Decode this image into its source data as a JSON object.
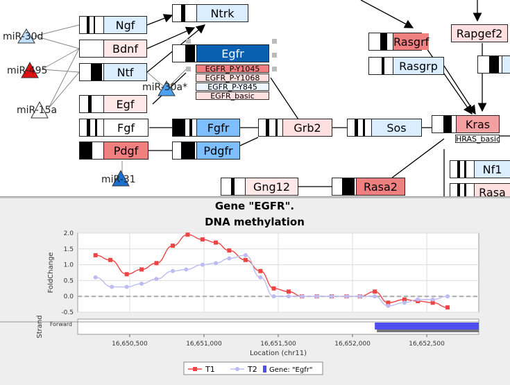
{
  "network": {
    "nodes": [
      {
        "id": "ngf",
        "label": "Ngf",
        "bg": "#dbeeff",
        "bars": "a"
      },
      {
        "id": "ntrk",
        "label": "Ntrk",
        "bg": "#dbeeff",
        "bars": "b"
      },
      {
        "id": "bdnf",
        "label": "Bdnf",
        "bg": "#ffe8e8",
        "bars": "none"
      },
      {
        "id": "egfr",
        "label": "Egfr",
        "bg": "#0a60b0",
        "bars": "c"
      },
      {
        "id": "ntf",
        "label": "Ntf",
        "bg": "#dbeeff",
        "bars": "d"
      },
      {
        "id": "egf",
        "label": "Egf",
        "bg": "#ffe8e8",
        "bars": "e"
      },
      {
        "id": "fgf",
        "label": "Fgf",
        "bg": "#ffffff",
        "bars": "f"
      },
      {
        "id": "fgfr",
        "label": "Fgfr",
        "bg": "#7fbfff",
        "bars": "g"
      },
      {
        "id": "grb2",
        "label": "Grb2",
        "bg": "#ffe0e0",
        "bars": "h"
      },
      {
        "id": "sos",
        "label": "Sos",
        "bg": "#dbeeff",
        "bars": "i"
      },
      {
        "id": "kras",
        "label": "Kras",
        "bg": "#f4a0a0",
        "bars": "j"
      },
      {
        "id": "pdgf",
        "label": "Pdgf",
        "bg": "#f08080",
        "bars": "k"
      },
      {
        "id": "pdgfr",
        "label": "Pdgfr",
        "bg": "#7fbfff",
        "bars": "g"
      },
      {
        "id": "rasgrf",
        "label": "Rasgrf",
        "bg": "#f08080",
        "bars": "l"
      },
      {
        "id": "rasgrp",
        "label": "Rasgrp",
        "bg": "#dbeeff",
        "bars": "m"
      },
      {
        "id": "rapgef2",
        "label": "Rapgef2",
        "bg": "#ffe0e0",
        "bars": "none"
      },
      {
        "id": "nf1",
        "label": "Nf1",
        "bg": "#dbeeff",
        "bars": "n"
      },
      {
        "id": "rasa",
        "label": "Rasa",
        "bg": "#ffe0e0",
        "bars": "n"
      },
      {
        "id": "gng12",
        "label": "Gng12",
        "bg": "#ffe8e8",
        "bars": "o"
      },
      {
        "id": "rasa2",
        "label": "Rasa2",
        "bg": "#f08080",
        "bars": "p"
      }
    ],
    "egfr_subs": [
      "EGFR_P-Y1045",
      "EGFR_P-Y1068",
      "EGFR_P-Y845",
      "EGFR_basic"
    ],
    "kras_sub": "HRAS_basic",
    "mirnas": [
      {
        "id": "mir30d",
        "label": "miR-30d",
        "color": "#bfe0ff"
      },
      {
        "id": "mir495",
        "label": "miR-495",
        "color": "#dd1111"
      },
      {
        "id": "mir30a",
        "label": "miR-30a*",
        "color": "#4a9fee"
      },
      {
        "id": "mir15a",
        "label": "miR-15a",
        "color": "#ffffff"
      },
      {
        "id": "mir31",
        "label": "miR-31",
        "color": "#1a70d0"
      }
    ]
  },
  "chart_data": {
    "type": "line",
    "title": "Gene \"EGFR\".",
    "subtitle": "DNA methylation",
    "ylabel": "FoldChange",
    "xlabel": "Location (chr11)",
    "strand_label": "Strand",
    "strand_value": "Forward",
    "ylim": [
      -0.5,
      2.0
    ],
    "xlim": [
      16650150,
      16652850
    ],
    "yticks": [
      "2.0",
      "1.5",
      "1.0",
      "0.5",
      "0.0",
      "-0.5"
    ],
    "ytick_values": [
      2.0,
      1.5,
      1.0,
      0.5,
      0.0,
      -0.5
    ],
    "xticks": [
      "16,650,500",
      "16,651,000",
      "16,651,500",
      "16,652,000",
      "16,652,500"
    ],
    "xtick_values": [
      16650500,
      16651000,
      16651500,
      16652000,
      16652500
    ],
    "series": [
      {
        "name": "T1",
        "color": "#ee4444",
        "x": [
          16650270,
          16650370,
          16650480,
          16650580,
          16650680,
          16650790,
          16650890,
          16650990,
          16651080,
          16651170,
          16651280,
          16651380,
          16651470,
          16651570,
          16651660,
          16651760,
          16651860,
          16651960,
          16652050,
          16652150,
          16652240,
          16652350,
          16652440,
          16652540,
          16652640
        ],
        "y": [
          1.3,
          1.15,
          0.7,
          0.85,
          1.05,
          1.6,
          1.95,
          1.8,
          1.7,
          1.45,
          1.15,
          0.8,
          0.25,
          0.15,
          0.0,
          0.0,
          0.0,
          0.0,
          0.0,
          0.15,
          -0.2,
          -0.1,
          -0.15,
          -0.2,
          -0.35
        ]
      },
      {
        "name": "T2",
        "color": "#bcbcf2",
        "x": [
          16650270,
          16650380,
          16650480,
          16650580,
          16650680,
          16650790,
          16650880,
          16650990,
          16651080,
          16651170,
          16651280,
          16651380,
          16651470,
          16651570,
          16651660,
          16651760,
          16651860,
          16651960,
          16652050,
          16652150,
          16652240,
          16652350,
          16652440,
          16652540,
          16652640
        ],
        "y": [
          0.6,
          0.3,
          0.3,
          0.4,
          0.55,
          0.8,
          0.85,
          1.0,
          1.05,
          1.2,
          1.3,
          0.6,
          0.0,
          0.0,
          0.0,
          0.0,
          0.0,
          0.0,
          0.0,
          0.0,
          -0.3,
          -0.2,
          -0.1,
          -0.1,
          0.0
        ]
      }
    ],
    "gene_track": {
      "name": "Gene: \"Egfr\"",
      "color": "#4f4fef",
      "start": 16652150,
      "end": 16852850
    },
    "legend": [
      "T1",
      "T2",
      "Gene: \"Egfr\""
    ],
    "legend_position": "bottom-center",
    "grid": true
  }
}
